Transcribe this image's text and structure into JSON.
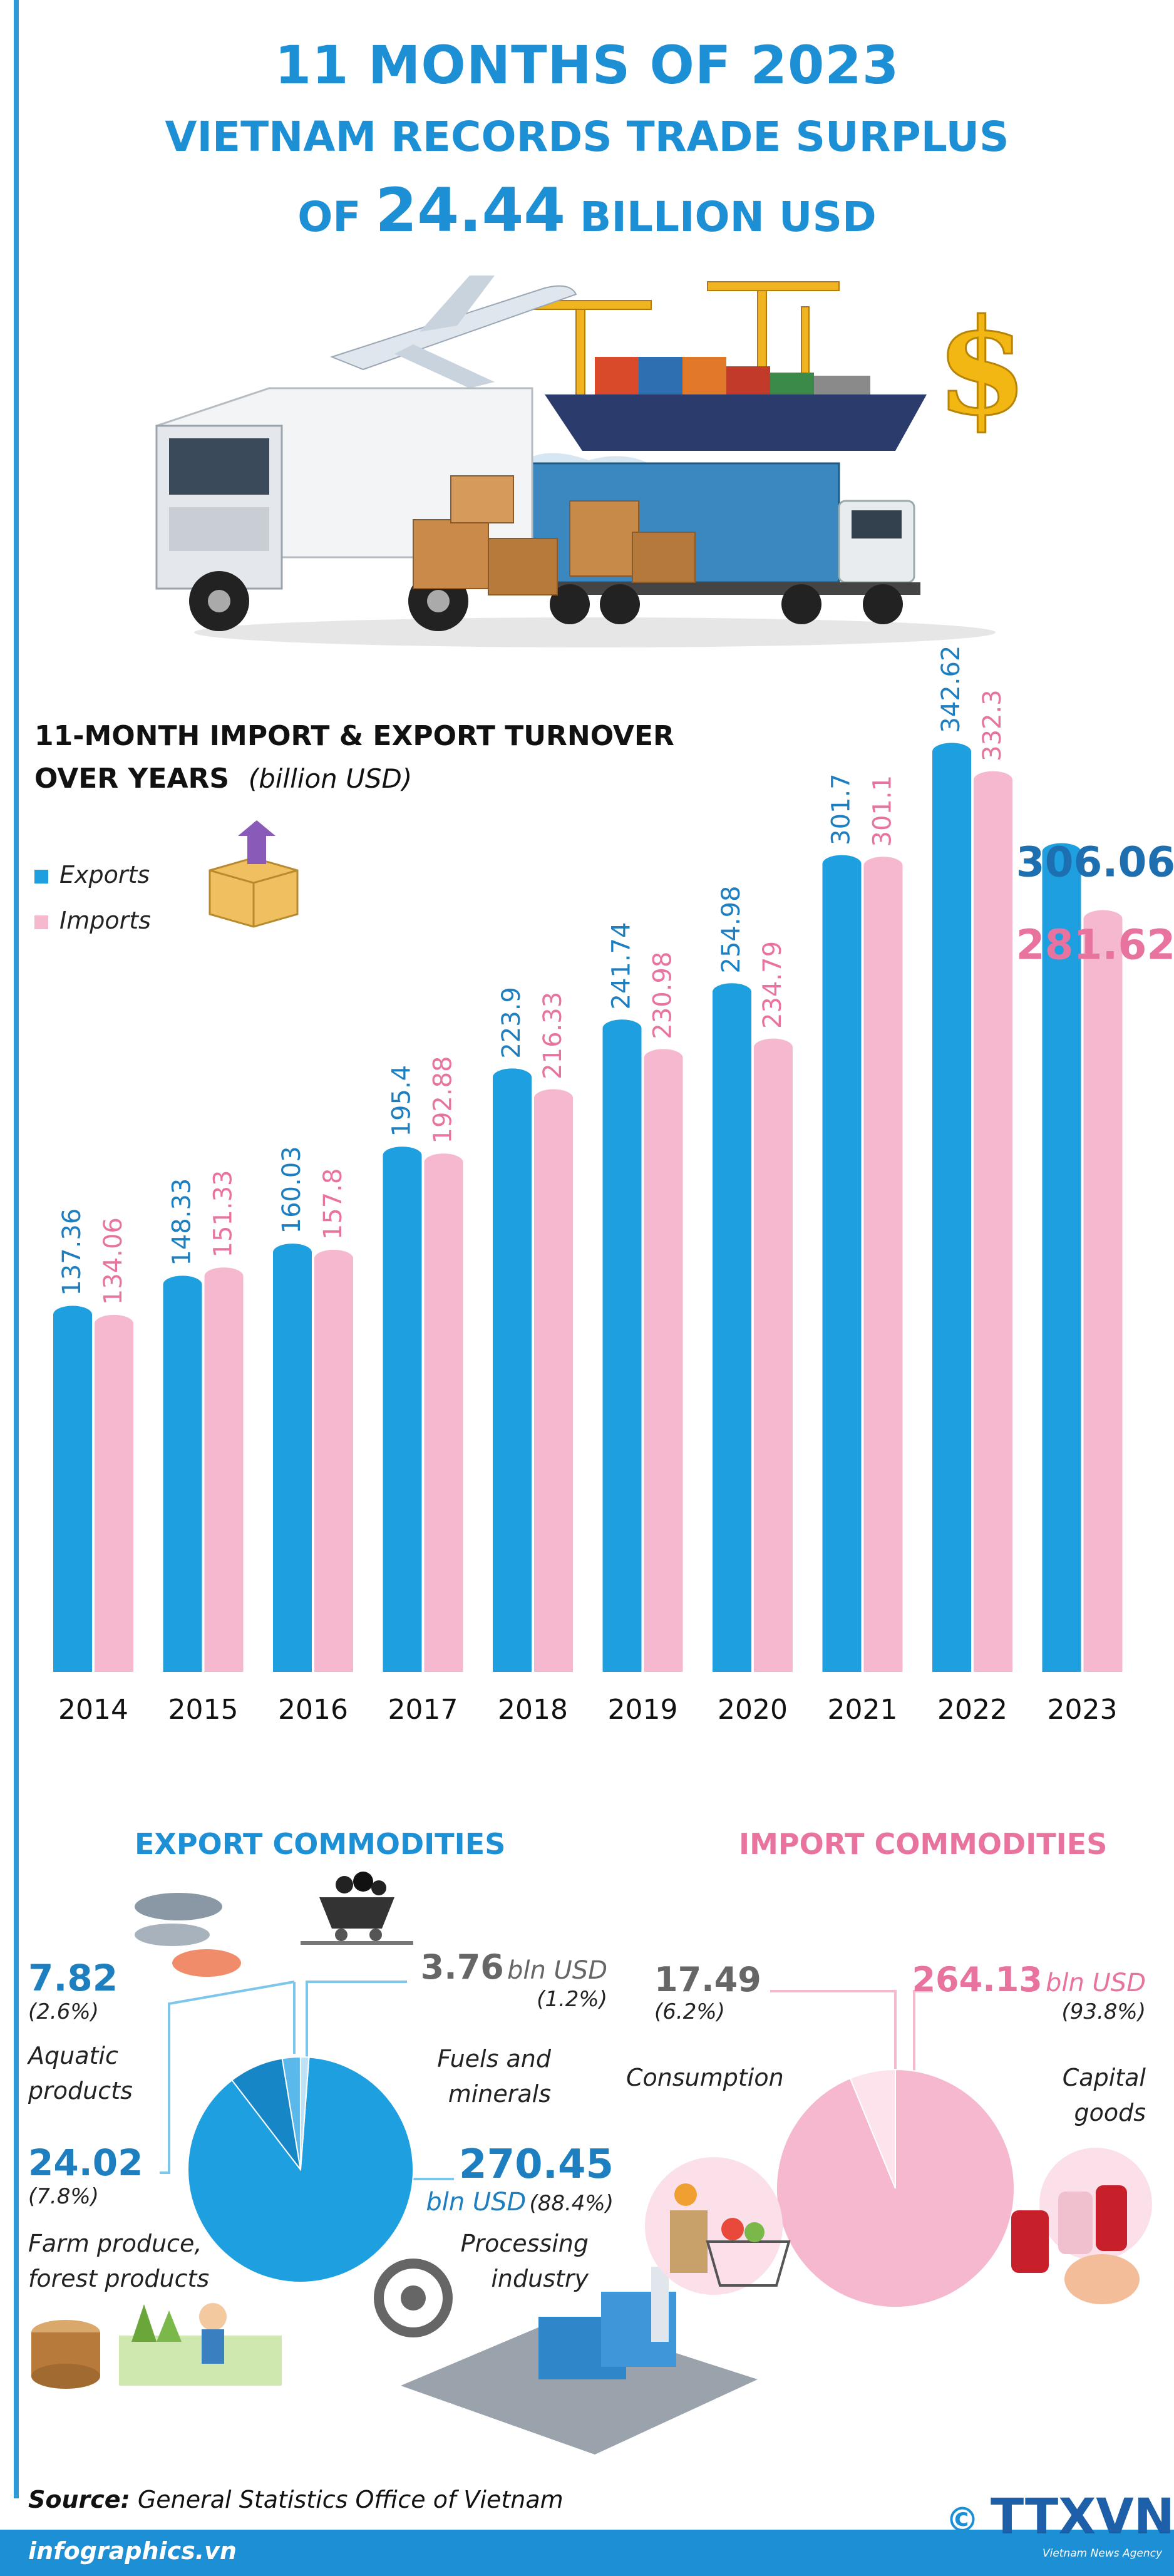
{
  "header": {
    "line1": "11 MONTHS OF 2023",
    "line2": "VIETNAM RECORDS TRADE SURPLUS",
    "line3_pre": "OF",
    "line3_value": "24.44",
    "line3_post": "BILLION USD"
  },
  "chart_data": {
    "type": "bar",
    "title_line1": "11-MONTH IMPORT & EXPORT TURNOVER",
    "title_line2": "OVER YEARS",
    "unit": "(billion USD)",
    "categories": [
      "2014",
      "2015",
      "2016",
      "2017",
      "2018",
      "2019",
      "2020",
      "2021",
      "2022",
      "2023"
    ],
    "series": [
      {
        "name": "Exports",
        "color": "#1ea0e0",
        "values": [
          137.36,
          148.33,
          160.03,
          195.4,
          223.9,
          241.74,
          254.98,
          301.7,
          342.62,
          306.06
        ],
        "labels": [
          "137.36",
          "148.33",
          "160.03",
          "195.4",
          "223.9",
          "241.74",
          "254.98",
          "301.7",
          "342.62",
          "306.06"
        ]
      },
      {
        "name": "Imports",
        "color": "#f5b8cf",
        "values": [
          134.06,
          151.33,
          157.8,
          192.88,
          216.33,
          230.98,
          234.79,
          301.1,
          332.3,
          281.62
        ],
        "labels": [
          "134.06",
          "151.33",
          "157.8",
          "192.88",
          "216.33",
          "230.98",
          "234.79",
          "301.1",
          "332.3",
          "281.62"
        ]
      }
    ],
    "legend": [
      "Exports",
      "Imports"
    ],
    "legend_position": "top-left",
    "grid": false
  },
  "export": {
    "title": "EXPORT COMMODITIES",
    "slices": [
      {
        "value": "270.45",
        "unit": "bln USD",
        "share": "(88.4%)",
        "percent": 88.4,
        "label1": "Processing",
        "label2": "industry",
        "color": "#1ea0e0"
      },
      {
        "value": "24.02",
        "share": "(7.8%)",
        "percent": 7.8,
        "label1": "Farm produce,",
        "label2": "forest products",
        "color": "#1686c6"
      },
      {
        "value": "7.82",
        "share": "(2.6%)",
        "percent": 2.6,
        "label1": "Aquatic",
        "label2": "products",
        "color": "#5bb8ea"
      },
      {
        "value": "3.76",
        "unit": "bln USD",
        "share": "(1.2%)",
        "percent": 1.2,
        "label1": "Fuels and",
        "label2": "minerals",
        "color": "#bfe3f6"
      }
    ]
  },
  "import": {
    "title": "IMPORT COMMODITIES",
    "slices": [
      {
        "value": "264.13",
        "unit": "bln USD",
        "share": "(93.8%)",
        "percent": 93.8,
        "label1": "Capital",
        "label2": "goods",
        "color": "#f5b8cf"
      },
      {
        "value": "17.49",
        "share": "(6.2%)",
        "percent": 6.2,
        "label1": "Consumption",
        "color": "#fde3ec"
      }
    ]
  },
  "footer": {
    "source_label": "Source:",
    "source_text": "General Statistics Office of Vietnam",
    "site": "infographics.vn",
    "agency": "TTXVN",
    "agency_sub": "Vietnam News Agency",
    "copyright": "©"
  }
}
